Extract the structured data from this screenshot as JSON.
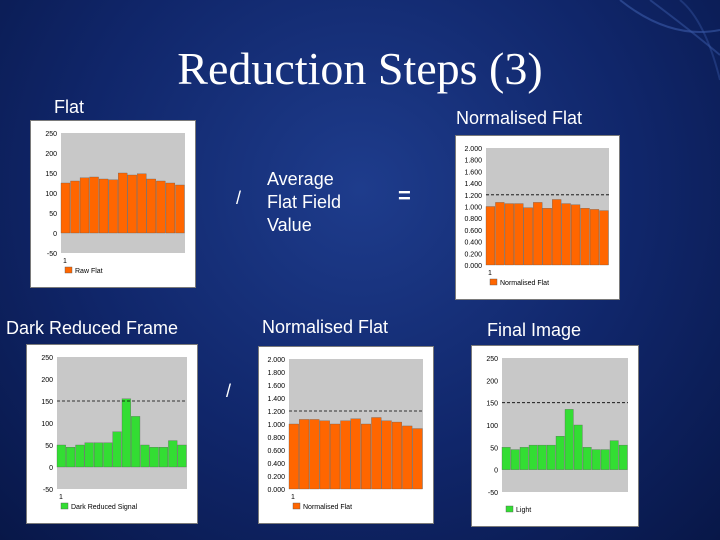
{
  "slide": {
    "title": "Reduction Steps (3)"
  },
  "labels": {
    "flat": "Flat",
    "normalised_flat_top": "Normalised Flat",
    "dark_reduced_frame": "Dark Reduced Frame",
    "normalised_flat_mid": "Normalised Flat",
    "final_image": "Final Image"
  },
  "operators": {
    "divide_top": "/",
    "avg_line1": "Average",
    "avg_line2": "Flat Field",
    "avg_line3": "Value",
    "equals": "=",
    "divide_bottom": "/"
  },
  "colors": {
    "orange": "#ff6600",
    "green": "#33dd33",
    "plot_bg": "#c8c8c8"
  },
  "chart_data": [
    {
      "id": "flat",
      "type": "bar",
      "color": "#ff6600",
      "values": [
        125,
        130,
        138,
        140,
        135,
        133,
        150,
        145,
        148,
        135,
        130,
        125,
        120
      ],
      "ylim": [
        -50,
        250
      ],
      "yticks": [
        "250",
        "200",
        "150",
        "100",
        "50",
        "0",
        "-50"
      ],
      "ytick_values": [
        250,
        200,
        150,
        100,
        50,
        0,
        -50
      ],
      "xtick": "1",
      "ref_line": null,
      "legend": "Raw Flat"
    },
    {
      "id": "normalised_flat_top",
      "type": "bar",
      "color": "#ff6600",
      "values": [
        1.0,
        1.07,
        1.05,
        1.05,
        0.98,
        1.07,
        0.97,
        1.12,
        1.05,
        1.03,
        0.97,
        0.95,
        0.93
      ],
      "ylim": [
        0,
        2.0
      ],
      "yticks": [
        "2.000",
        "1.800",
        "1.600",
        "1.400",
        "1.200",
        "1.000",
        "0.800",
        "0.600",
        "0.400",
        "0.200",
        "0.000"
      ],
      "ytick_values": [
        2.0,
        1.8,
        1.6,
        1.4,
        1.2,
        1.0,
        0.8,
        0.6,
        0.4,
        0.2,
        0.0
      ],
      "xtick": "1",
      "ref_line": 1.2,
      "legend": "Normalised Flat"
    },
    {
      "id": "dark_reduced",
      "type": "bar",
      "color": "#33dd33",
      "values": [
        50,
        45,
        50,
        55,
        55,
        55,
        80,
        155,
        115,
        50,
        45,
        45,
        60,
        50
      ],
      "ylim": [
        -50,
        250
      ],
      "yticks": [
        "250",
        "200",
        "150",
        "100",
        "50",
        "0",
        "-50"
      ],
      "ytick_values": [
        250,
        200,
        150,
        100,
        50,
        0,
        -50
      ],
      "xtick": "1",
      "ref_line": 150,
      "legend": "Dark Reduced Signal"
    },
    {
      "id": "normalised_flat_mid",
      "type": "bar",
      "color": "#ff6600",
      "values": [
        1.0,
        1.07,
        1.07,
        1.05,
        1.0,
        1.05,
        1.08,
        1.0,
        1.1,
        1.05,
        1.03,
        0.97,
        0.93
      ],
      "ylim": [
        0,
        2.0
      ],
      "yticks": [
        "2.000",
        "1.800",
        "1.600",
        "1.400",
        "1.200",
        "1.000",
        "0.800",
        "0.600",
        "0.400",
        "0.200",
        "0.000"
      ],
      "ytick_values": [
        2.0,
        1.8,
        1.6,
        1.4,
        1.2,
        1.0,
        0.8,
        0.6,
        0.4,
        0.2,
        0.0
      ],
      "xtick": "1",
      "ref_line": 1.2,
      "legend": "Normalised Flat"
    },
    {
      "id": "final_image",
      "type": "bar",
      "color": "#33dd33",
      "values": [
        50,
        45,
        50,
        55,
        55,
        55,
        75,
        135,
        100,
        50,
        45,
        45,
        65,
        55
      ],
      "ylim": [
        -50,
        250
      ],
      "yticks": [
        "250",
        "200",
        "150",
        "100",
        "50",
        "0",
        "-50"
      ],
      "ytick_values": [
        250,
        200,
        150,
        100,
        50,
        0,
        -50
      ],
      "xtick": "",
      "ref_line": 150,
      "legend": "Light"
    }
  ]
}
